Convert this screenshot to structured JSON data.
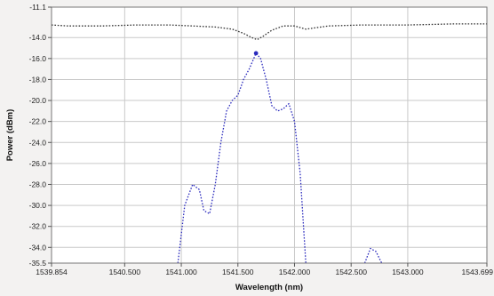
{
  "chart_data": {
    "type": "line",
    "title": "",
    "xlabel": "Wavelength (nm)",
    "ylabel": "Power (dBm)",
    "xlim": [
      1539.854,
      1543.699
    ],
    "ylim": [
      -35.5,
      -11.1
    ],
    "x_ticks": [
      1539.854,
      1540.5,
      1541.0,
      1541.5,
      1542.0,
      1542.5,
      1543.0,
      1543.699
    ],
    "x_tick_labels": [
      "1539.854",
      "1540.500",
      "1541.000",
      "1541.500",
      "1542.000",
      "1542.500",
      "1543.000",
      "1543.699"
    ],
    "y_ticks": [
      -11.1,
      -14,
      -16,
      -18,
      -20,
      -22,
      -24,
      -26,
      -28,
      -30,
      -32,
      -34,
      -35.5
    ],
    "y_tick_labels": [
      "-11.1",
      "-14.0",
      "-16.0",
      "-18.0",
      "-20.0",
      "-22.0",
      "-24.0",
      "-26.0",
      "-28.0",
      "-30.0",
      "-32.0",
      "-34.0",
      "-35.5"
    ],
    "grid": true,
    "series": [
      {
        "color": "#333333",
        "style": "dotted",
        "x": [
          1539.854,
          1540.0,
          1540.3,
          1540.6,
          1540.9,
          1541.1,
          1541.3,
          1541.45,
          1541.55,
          1541.62,
          1541.67,
          1541.72,
          1541.8,
          1541.9,
          1542.0,
          1542.1,
          1542.3,
          1542.6,
          1543.0,
          1543.4,
          1543.699
        ],
        "y": [
          -12.8,
          -12.9,
          -12.9,
          -12.8,
          -12.8,
          -12.9,
          -13.0,
          -13.2,
          -13.6,
          -14.0,
          -14.2,
          -13.9,
          -13.3,
          -12.9,
          -12.9,
          -13.2,
          -12.9,
          -12.8,
          -12.8,
          -12.7,
          -12.7
        ]
      },
      {
        "color": "#2b2bbd",
        "style": "dotted",
        "x": [
          1540.97,
          1541.03,
          1541.1,
          1541.16,
          1541.2,
          1541.25,
          1541.3,
          1541.35,
          1541.4,
          1541.45,
          1541.5,
          1541.55,
          1541.6,
          1541.66,
          1541.7,
          1541.75,
          1541.8,
          1541.85,
          1541.9,
          1541.95,
          1542.0,
          1542.05,
          1542.1
        ],
        "y": [
          -35.5,
          -30.0,
          -28.0,
          -28.5,
          -30.5,
          -30.8,
          -28.0,
          -24.0,
          -21.0,
          -20.0,
          -19.5,
          -18.0,
          -17.0,
          -15.5,
          -16.0,
          -18.0,
          -20.5,
          -21.0,
          -20.8,
          -20.3,
          -22.0,
          -27.0,
          -35.5
        ]
      },
      {
        "color": "#2b2bbd",
        "style": "dotted",
        "x": [
          1542.62,
          1542.67,
          1542.72,
          1542.77
        ],
        "y": [
          -35.5,
          -34.1,
          -34.4,
          -35.5
        ]
      }
    ],
    "marker": {
      "x": 1541.66,
      "y": -15.5,
      "color": "#2b2bbd"
    }
  }
}
